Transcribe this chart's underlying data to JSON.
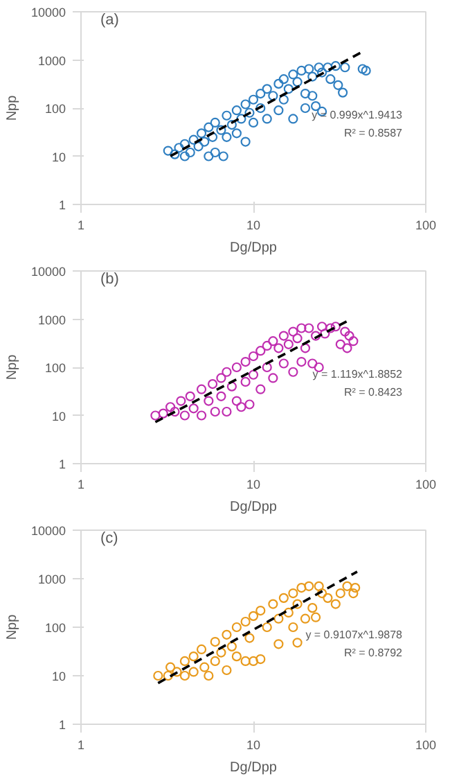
{
  "chart_data": [
    {
      "type": "scatter",
      "xlabel": "Dg/Dpp",
      "ylabel": "Npp",
      "log": "xy",
      "xlim": [
        1,
        100
      ],
      "xticks": [
        1,
        10,
        100
      ],
      "ylim": [
        1,
        10000
      ],
      "yticks": [
        1,
        10,
        100,
        1000,
        10000
      ],
      "grid": false,
      "annotations": [
        "(a)",
        "y = 0.999x^1.9413",
        "R² = 0.8587"
      ],
      "series": [
        {
          "color": "#2f7fc1",
          "marker": "circle",
          "x": [
            3.2,
            3.5,
            3.7,
            4,
            4,
            4.3,
            4.5,
            4.8,
            5,
            5.2,
            5.5,
            5.5,
            5.8,
            6,
            6,
            6.5,
            6.7,
            7,
            7,
            7.5,
            8,
            8,
            8.5,
            9,
            9,
            9.5,
            10,
            10,
            11,
            11,
            12,
            12,
            13,
            14,
            14,
            15,
            15,
            16,
            17,
            17,
            18,
            19,
            20,
            20,
            21,
            22,
            22,
            23,
            24,
            25,
            25,
            27,
            28,
            30,
            31,
            33,
            34,
            43,
            45
          ],
          "values": [
            13,
            11,
            15,
            10,
            18,
            12,
            22,
            16,
            30,
            20,
            10,
            40,
            25,
            12,
            50,
            35,
            10,
            70,
            25,
            45,
            90,
            30,
            60,
            120,
            20,
            80,
            150,
            50,
            200,
            100,
            250,
            60,
            180,
            320,
            90,
            400,
            150,
            250,
            500,
            60,
            350,
            600,
            200,
            100,
            650,
            450,
            180,
            110,
            700,
            85,
            550,
            700,
            400,
            750,
            300,
            210,
            700,
            650,
            600
          ]
        },
        {
          "type": "line",
          "color": "#000000",
          "line_style": "dashed",
          "x": [
            3.3,
            42.6
          ],
          "values": [
            10.1,
            1460
          ]
        }
      ]
    },
    {
      "type": "scatter",
      "xlabel": "Dg/Dpp",
      "ylabel": "Npp",
      "log": "xy",
      "xlim": [
        1,
        100
      ],
      "xticks": [
        1,
        10,
        100
      ],
      "ylim": [
        1,
        10000
      ],
      "yticks": [
        1,
        10,
        100,
        1000,
        10000
      ],
      "grid": false,
      "annotations": [
        "(b)",
        "y = 1.119x^1.8852",
        "R² = 0.8423"
      ],
      "series": [
        {
          "color": "#c02eb0",
          "marker": "circle",
          "x": [
            2.7,
            3,
            3.3,
            3.5,
            3.8,
            4,
            4.3,
            4.5,
            5,
            5,
            5.5,
            5.8,
            6,
            6.5,
            6.5,
            7,
            7,
            7.5,
            8,
            8,
            8.5,
            9,
            9,
            9.5,
            10,
            10,
            11,
            11,
            12,
            12,
            13,
            13,
            14,
            15,
            15,
            16,
            17,
            17,
            18,
            19,
            19,
            20,
            21,
            22,
            23,
            24,
            25,
            26,
            28,
            30,
            32,
            34,
            35,
            36,
            38
          ],
          "values": [
            10,
            11,
            15,
            12,
            20,
            10,
            25,
            14,
            35,
            10,
            20,
            45,
            12,
            60,
            25,
            80,
            12,
            40,
            100,
            20,
            15,
            130,
            50,
            17,
            170,
            70,
            220,
            35,
            280,
            100,
            350,
            60,
            250,
            450,
            120,
            300,
            550,
            80,
            400,
            650,
            130,
            250,
            650,
            120,
            450,
            100,
            700,
            500,
            650,
            700,
            300,
            550,
            250,
            450,
            350
          ]
        },
        {
          "type": "line",
          "color": "#000000",
          "line_style": "dashed",
          "x": [
            2.7,
            35
          ],
          "values": [
            7.3,
            911
          ]
        }
      ]
    },
    {
      "type": "scatter",
      "xlabel": "Dg/Dpp",
      "ylabel": "Npp",
      "log": "xy",
      "xlim": [
        1,
        100
      ],
      "xticks": [
        1,
        10,
        100
      ],
      "ylim": [
        1,
        10000
      ],
      "yticks": [
        1,
        10,
        100,
        1000,
        10000
      ],
      "grid": false,
      "annotations": [
        "(c)",
        "y = 0.9107x^1.9878",
        "R² = 0.8792"
      ],
      "series": [
        {
          "color": "#e89a1c",
          "marker": "circle",
          "x": [
            2.8,
            3.2,
            3.3,
            3.6,
            4,
            4,
            4.5,
            4.5,
            5,
            5.2,
            5.5,
            6,
            6,
            6.5,
            7,
            7,
            7.5,
            8,
            8,
            9,
            9,
            9.5,
            10,
            10,
            11,
            11,
            12,
            13,
            14,
            14,
            15,
            16,
            17,
            17,
            18,
            18,
            19,
            20,
            21,
            22,
            23,
            24,
            25,
            27,
            30,
            32,
            35,
            38,
            39
          ],
          "values": [
            10,
            10,
            15,
            12,
            20,
            10,
            25,
            12,
            35,
            15,
            10,
            50,
            20,
            30,
            70,
            13,
            40,
            100,
            25,
            130,
            20,
            60,
            170,
            20,
            220,
            22,
            100,
            300,
            150,
            45,
            400,
            200,
            500,
            100,
            300,
            48,
            650,
            150,
            700,
            250,
            160,
            700,
            500,
            400,
            300,
            500,
            700,
            500,
            650
          ]
        },
        {
          "type": "line",
          "color": "#000000",
          "line_style": "dashed",
          "x": [
            2.8,
            40
          ],
          "values": [
            7.06,
            1398
          ]
        }
      ]
    }
  ]
}
